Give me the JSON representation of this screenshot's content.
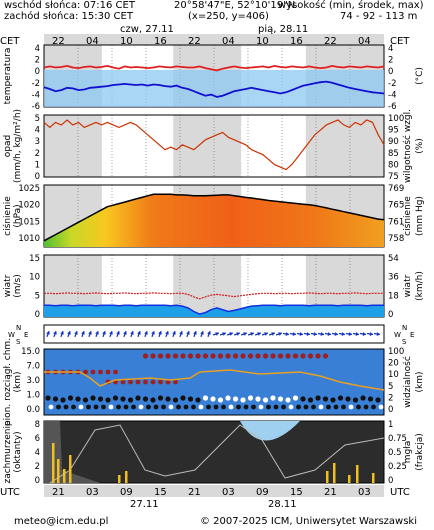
{
  "header": {
    "sunrise": "wschód słońca: 07:16 CET",
    "sunset": "zachód słońca: 15:30 CET",
    "coords": "20°58'47\"E, 52°10'19\"N",
    "grid": "(x=250,  y=406)",
    "elevation_label": "wysokość (min, środek, max)",
    "elevation_values": "74 - 92 - 113 m"
  },
  "timeline": {
    "tz_top": "CET",
    "tz_bottom": "UTC",
    "day1_top": "czw, 27.11",
    "day2_top": "pią, 28.11",
    "top_hours": [
      "22",
      "04",
      "10",
      "16",
      "22",
      "04",
      "10",
      "16",
      "22",
      "04"
    ],
    "bottom_hours": [
      "21",
      "03",
      "09",
      "15",
      "21",
      "03",
      "09",
      "15",
      "21",
      "03"
    ],
    "day1_bottom": "27.11",
    "day2_bottom": "28.11"
  },
  "panels": {
    "temperature": {
      "label_left": "temperatura",
      "label_right": "(°C)",
      "ticks_left": [
        "4",
        "2",
        "0",
        "-2",
        "-4",
        "-6"
      ],
      "ticks_right": [
        "4",
        "2",
        "0",
        "-2",
        "-4",
        "-6"
      ]
    },
    "precip": {
      "label_left": "opad",
      "label_left2": "(mm/h, kg/m²/h)",
      "label_right": "wilgotność wzgl.",
      "label_right2": "(%)",
      "ticks_left": [
        "5",
        "4",
        "3",
        "2",
        "1",
        "0"
      ],
      "ticks_right": [
        "100",
        "95",
        "90",
        "85",
        "80",
        "75"
      ]
    },
    "pressure": {
      "label_left": "ciśnienie",
      "label_left2": "(hPa)",
      "label_right": "ciśnienie",
      "label_right2": "(mm Hg)",
      "ticks_left": [
        "1025",
        "1020",
        "1015",
        "1010"
      ],
      "ticks_right": [
        "769",
        "765",
        "761",
        "758"
      ]
    },
    "wind": {
      "label_left": "wiatr",
      "label_left2": "(m/s)",
      "label_right": "wiatr",
      "label_right2": "(km/h)",
      "ticks_left": [
        "15",
        "10",
        "5",
        "0"
      ],
      "ticks_right": [
        "54",
        "36",
        "18",
        "0"
      ]
    },
    "winddir": {
      "left": [
        "N",
        "W",
        "E",
        "S"
      ],
      "right": [
        "N",
        "W",
        "E",
        "S"
      ]
    },
    "clouds": {
      "label_left": "pion. rozciągł. chm.",
      "label_left2": "(km)",
      "label_right": "widzialność",
      "label_right2": "(km)",
      "ticks_left": [
        "15.0",
        "7.0",
        "3.0",
        "1.0",
        "0.0"
      ],
      "ticks_right": [
        "100",
        "20",
        "10",
        "5",
        "2",
        "0"
      ]
    },
    "fog": {
      "label_left": "zachmurzenie",
      "label_left2": "(oktanty)",
      "label_right": "mgła",
      "label_right2": "(frakcja)",
      "ticks_left": [
        "8",
        "6",
        "4",
        "2",
        "0"
      ],
      "ticks_right": [
        "1",
        "0.75",
        "0.5",
        "0.25",
        "0"
      ]
    }
  },
  "footer": {
    "email": "meteo@icm.edu.pl",
    "copyright": "© 2007-2025 ICM, Uniwersytet Warszawski"
  },
  "chart_data": [
    {
      "type": "line",
      "title": "temperatura",
      "x_hours": 60,
      "series": [
        {
          "values": [
            1.0,
            1.2,
            1.0,
            1.1,
            1.3,
            1.0,
            0.9,
            1.1,
            1.2,
            1.0,
            1.1,
            1.3,
            1.0,
            0.8,
            1.2,
            1.0,
            1.1,
            1.0,
            0.9,
            1.0,
            1.2,
            1.1,
            1.0,
            1.2,
            1.1,
            1.0,
            1.0,
            1.2,
            0.9,
            0.7,
            0.5,
            0.8,
            1.0,
            1.2,
            1.0,
            0.9,
            1.0,
            1.1,
            1.2,
            1.0,
            1.3,
            1.1,
            1.0,
            1.2,
            1.1,
            1.0,
            1.2,
            1.0,
            0.9,
            1.0,
            1.3,
            1.1,
            1.0,
            1.2,
            1.1,
            1.0,
            1.2,
            1.1,
            1.0,
            1.2
          ]
        },
        {
          "values": [
            -2.5,
            -2.8,
            -3.2,
            -3.0,
            -2.6,
            -2.7,
            -3.0,
            -2.9,
            -2.6,
            -2.5,
            -2.4,
            -2.3,
            -2.1,
            -2.0,
            -1.9,
            -2.0,
            -2.1,
            -2.0,
            -2.2,
            -2.0,
            -2.1,
            -2.3,
            -2.4,
            -2.2,
            -2.6,
            -2.8,
            -3.2,
            -3.6,
            -4.0,
            -3.8,
            -4.2,
            -4.0,
            -3.6,
            -3.2,
            -3.0,
            -2.8,
            -2.6,
            -2.8,
            -3.0,
            -3.2,
            -3.4,
            -3.6,
            -3.4,
            -3.0,
            -2.6,
            -2.2,
            -2.0,
            -1.8,
            -1.6,
            -1.5,
            -1.7,
            -2.0,
            -2.3,
            -2.6,
            -2.8,
            -3.0,
            -3.2,
            -3.4,
            -3.5,
            -3.6
          ]
        }
      ]
    },
    {
      "type": "line",
      "title": "wilgotność wzgl. (%)",
      "x_hours": 60,
      "series": [
        {
          "values": [
            97,
            95,
            97,
            96,
            98,
            96,
            97,
            95,
            96,
            97,
            96,
            97,
            96,
            95,
            96,
            97,
            96,
            94,
            92,
            90,
            88,
            86,
            87,
            86,
            88,
            87,
            86,
            88,
            90,
            91,
            92,
            93,
            91,
            90,
            89,
            88,
            86,
            85,
            84,
            82,
            80,
            79,
            78,
            80,
            83,
            86,
            89,
            92,
            94,
            96,
            97,
            98,
            96,
            95,
            97,
            96,
            98,
            97,
            92,
            88
          ]
        }
      ]
    },
    {
      "type": "area",
      "title": "ciśnienie (hPa)",
      "x_hours": 60,
      "series": [
        {
          "values": [
            1009,
            1010,
            1011,
            1012,
            1013,
            1014,
            1015,
            1016,
            1017,
            1018,
            1019,
            1020,
            1020.5,
            1021,
            1021.5,
            1022,
            1022.5,
            1023,
            1023.5,
            1024,
            1024,
            1024,
            1024,
            1023.8,
            1023.8,
            1023.7,
            1023.5,
            1023.5,
            1023.5,
            1023.6,
            1023.7,
            1023.8,
            1023.8,
            1023.5,
            1023.3,
            1023,
            1022.8,
            1022.5,
            1022.3,
            1022,
            1021.8,
            1021.6,
            1021.4,
            1021.2,
            1021,
            1020.8,
            1020.6,
            1020.4,
            1020,
            1019.6,
            1019.2,
            1018.8,
            1018.4,
            1018,
            1017.6,
            1017.2,
            1016.8,
            1016.4,
            1016,
            1015.8
          ]
        }
      ]
    },
    {
      "type": "line",
      "title": "wiatr (m/s)",
      "x_hours": 60,
      "series": [
        {
          "values": [
            6.5,
            6.5,
            6.4,
            6.5,
            6.6,
            6.5,
            6.5,
            6.4,
            6.5,
            6.6,
            6.5,
            6.4,
            6.5,
            6.5,
            6.6,
            6.5,
            6.4,
            6.5,
            6.5,
            6.6,
            6.5,
            6.5,
            6.4,
            6.5,
            6.5,
            6.2,
            5.5,
            5.0,
            5.5,
            6.0,
            6.2,
            6.0,
            5.8,
            5.6,
            5.8,
            6.0,
            6.2,
            6.4,
            6.5,
            6.5,
            6.4,
            6.5,
            6.5,
            6.4,
            6.5,
            6.5,
            6.6,
            6.5,
            6.4,
            6.5,
            6.5,
            6.4,
            6.5,
            6.5,
            6.6,
            6.5,
            6.4,
            6.5,
            6.5,
            6.5
          ]
        },
        {
          "values": [
            3.2,
            3.2,
            3.1,
            3.2,
            3.2,
            3.1,
            3.2,
            3.2,
            3.2,
            3.1,
            3.2,
            3.2,
            3.2,
            3.1,
            3.2,
            3.2,
            3.1,
            3.2,
            3.2,
            3.2,
            3.2,
            3.2,
            3.1,
            3.2,
            3.0,
            2.5,
            1.5,
            0.8,
            1.2,
            2.0,
            2.5,
            2.0,
            1.5,
            1.8,
            2.2,
            2.6,
            3.0,
            3.1,
            3.2,
            3.2,
            3.2,
            3.1,
            3.2,
            3.2,
            3.2,
            3.2,
            3.1,
            3.2,
            3.2,
            3.2,
            3.2,
            3.1,
            3.2,
            3.2,
            3.2,
            3.2,
            3.1,
            3.2,
            3.2,
            3.2
          ]
        }
      ]
    }
  ],
  "colors": {
    "day_bg": "#ffffff",
    "night_bg": "#d9d9d9",
    "temp_max": "#e02020",
    "temp_min": "#1010d0",
    "humidity": "#cc3300",
    "pressure_line": "#000000",
    "gust": "#d81818",
    "wind_avg": "#1030e0",
    "clouds_bg": "#3a7fd6",
    "vis": "#e8a020",
    "fog_bg": "#3a3a3a",
    "sky_blue": "#9fd0f0"
  }
}
